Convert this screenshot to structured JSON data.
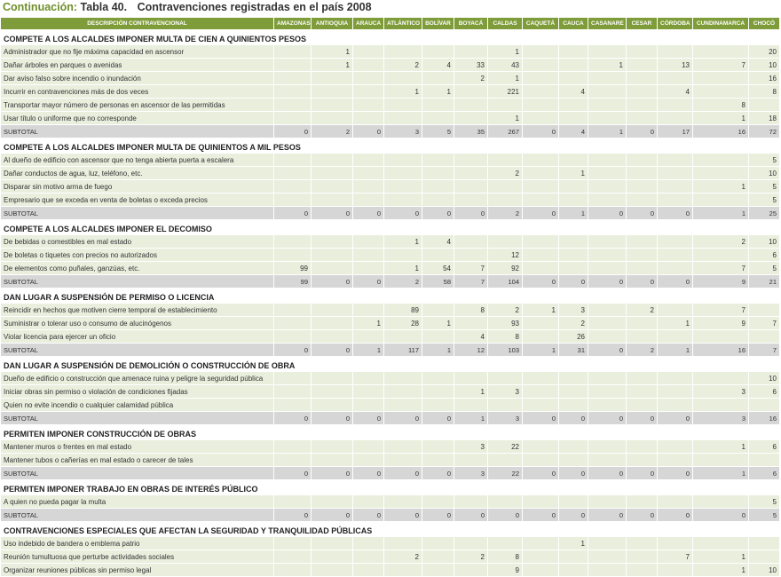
{
  "header": {
    "prefix": "Continuación:",
    "number": "Tabla 40.",
    "title": "Contravenciones registradas en el país 2008"
  },
  "table": {
    "columns": [
      "DESCRIPCIÓN CONTRAVENCIONAL",
      "AMAZONAS",
      "ANTIOQUIA",
      "ARAUCA",
      "ATLÁNTICO",
      "BOLÍVAR",
      "BOYACÁ",
      "CALDAS",
      "CAQUETÁ",
      "CAUCA",
      "CASANARE",
      "CESAR",
      "CÓRDOBA",
      "CUNDINAMARCA",
      "CHOCÓ"
    ],
    "sections": [
      {
        "title": "COMPETE A LOS ALCALDES IMPONER MULTA DE CIEN A QUINIENTOS PESOS",
        "rows": [
          {
            "label": "Administrador que no fije máxima capacidad en ascensor",
            "values": [
              null,
              1,
              null,
              null,
              null,
              null,
              1,
              null,
              null,
              null,
              null,
              null,
              null,
              20
            ]
          },
          {
            "label": "Dañar árboles en parques o avenidas",
            "values": [
              null,
              1,
              null,
              2,
              4,
              33,
              43,
              null,
              null,
              1,
              null,
              13,
              7,
              10
            ]
          },
          {
            "label": "Dar aviso falso sobre incendio o inundación",
            "values": [
              null,
              null,
              null,
              null,
              null,
              2,
              1,
              null,
              null,
              null,
              null,
              null,
              null,
              16
            ]
          },
          {
            "label": "Incurrir en contravenciones más de dos veces",
            "values": [
              null,
              null,
              null,
              1,
              1,
              null,
              221,
              null,
              4,
              null,
              null,
              4,
              null,
              8
            ]
          },
          {
            "label": "Transportar mayor número de personas en ascensor de las permitidas",
            "values": [
              null,
              null,
              null,
              null,
              null,
              null,
              null,
              null,
              null,
              null,
              null,
              null,
              8,
              null
            ]
          },
          {
            "label": "Usar título o uniforme que no corresponde",
            "values": [
              null,
              null,
              null,
              null,
              null,
              null,
              1,
              null,
              null,
              null,
              null,
              null,
              1,
              18
            ]
          }
        ],
        "subtotal": {
          "label": "SUBTOTAL",
          "values": [
            0,
            2,
            0,
            3,
            5,
            35,
            267,
            0,
            4,
            1,
            0,
            17,
            16,
            72
          ]
        }
      },
      {
        "title": "COMPETE A LOS ALCALDES IMPONER MULTA DE QUINIENTOS A MIL PESOS",
        "rows": [
          {
            "label": "Al dueño de edificio con ascensor que no tenga abierta puerta a escalera",
            "values": [
              null,
              null,
              null,
              null,
              null,
              null,
              null,
              null,
              null,
              null,
              null,
              null,
              null,
              5
            ]
          },
          {
            "label": "Dañar conductos de agua, luz, teléfono, etc.",
            "values": [
              null,
              null,
              null,
              null,
              null,
              null,
              2,
              null,
              1,
              null,
              null,
              null,
              null,
              10
            ]
          },
          {
            "label": "Disparar sin motivo arma de fuego",
            "values": [
              null,
              null,
              null,
              null,
              null,
              null,
              null,
              null,
              null,
              null,
              null,
              null,
              1,
              5
            ]
          },
          {
            "label": "Empresario que se exceda en venta de boletas o exceda precios",
            "values": [
              null,
              null,
              null,
              null,
              null,
              null,
              null,
              null,
              null,
              null,
              null,
              null,
              null,
              5
            ]
          }
        ],
        "subtotal": {
          "label": "SUBTOTAL",
          "values": [
            0,
            0,
            0,
            0,
            0,
            0,
            2,
            0,
            1,
            0,
            0,
            0,
            1,
            25
          ]
        }
      },
      {
        "title": "COMPETE A LOS ALCALDES IMPONER EL DECOMISO",
        "rows": [
          {
            "label": "De bebidas o comestibles en mal estado",
            "values": [
              null,
              null,
              null,
              1,
              4,
              null,
              null,
              null,
              null,
              null,
              null,
              null,
              2,
              10
            ]
          },
          {
            "label": "De boletas o tiquetes con precios no autorizados",
            "values": [
              null,
              null,
              null,
              null,
              null,
              null,
              12,
              null,
              null,
              null,
              null,
              null,
              null,
              6
            ]
          },
          {
            "label": "De elementos como puñales, ganzúas, etc.",
            "values": [
              99,
              null,
              null,
              1,
              54,
              7,
              92,
              null,
              null,
              null,
              null,
              null,
              7,
              5
            ]
          }
        ],
        "subtotal": {
          "label": "SUBTOTAL",
          "values": [
            99,
            0,
            0,
            2,
            58,
            7,
            104,
            0,
            0,
            0,
            0,
            0,
            9,
            21
          ]
        }
      },
      {
        "title": "DAN LUGAR A SUSPENSIÓN DE PERMISO O LICENCIA",
        "rows": [
          {
            "label": "Reincidir en hechos que motiven cierre temporal de establecimiento",
            "values": [
              null,
              null,
              null,
              89,
              null,
              8,
              2,
              1,
              3,
              null,
              2,
              null,
              7,
              null
            ]
          },
          {
            "label": "Suministrar o tolerar uso o consumo de alucinógenos",
            "values": [
              null,
              null,
              1,
              28,
              1,
              null,
              93,
              null,
              2,
              null,
              null,
              1,
              9,
              7
            ]
          },
          {
            "label": "Violar licencia para ejercer un oficio",
            "values": [
              null,
              null,
              null,
              null,
              null,
              4,
              8,
              null,
              26,
              null,
              null,
              null,
              null,
              null
            ]
          }
        ],
        "subtotal": {
          "label": "SUBTOTAL",
          "values": [
            0,
            0,
            1,
            117,
            1,
            12,
            103,
            1,
            31,
            0,
            2,
            1,
            16,
            7
          ]
        }
      },
      {
        "title": "DAN LUGAR A SUSPENSIÓN DE DEMOLICIÓN O CONSTRUCCIÓN DE OBRA",
        "rows": [
          {
            "label": "Dueño de edificio o construcción que amenace ruina y peligre la seguridad pública",
            "values": [
              null,
              null,
              null,
              null,
              null,
              null,
              null,
              null,
              null,
              null,
              null,
              null,
              null,
              10
            ]
          },
          {
            "label": "Iniciar obras sin permiso o violación de condiciones fijadas",
            "values": [
              null,
              null,
              null,
              null,
              null,
              1,
              3,
              null,
              null,
              null,
              null,
              null,
              3,
              6
            ]
          },
          {
            "label": "Quien no evite incendio o cualquier calamidad pública",
            "values": [
              null,
              null,
              null,
              null,
              null,
              null,
              null,
              null,
              null,
              null,
              null,
              null,
              null,
              null
            ]
          }
        ],
        "subtotal": {
          "label": "SUBTOTAL",
          "values": [
            0,
            0,
            0,
            0,
            0,
            1,
            3,
            0,
            0,
            0,
            0,
            0,
            3,
            16
          ]
        }
      },
      {
        "title": "PERMITEN IMPONER CONSTRUCCIÓN DE OBRAS",
        "rows": [
          {
            "label": "Mantener muros o frentes en mal estado",
            "values": [
              null,
              null,
              null,
              null,
              null,
              3,
              22,
              null,
              null,
              null,
              null,
              null,
              1,
              6
            ]
          },
          {
            "label": "Mantener tubos o cañerías en mal estado o carecer de tales",
            "values": [
              null,
              null,
              null,
              null,
              null,
              null,
              null,
              null,
              null,
              null,
              null,
              null,
              null,
              null
            ]
          }
        ],
        "subtotal": {
          "label": "SUBTOTAL",
          "values": [
            0,
            0,
            0,
            0,
            0,
            3,
            22,
            0,
            0,
            0,
            0,
            0,
            1,
            6
          ]
        }
      },
      {
        "title": "PERMITEN IMPONER TRABAJO EN OBRAS DE INTERÉS PÚBLICO",
        "rows": [
          {
            "label": "A quien no pueda pagar la multa",
            "values": [
              null,
              null,
              null,
              null,
              null,
              null,
              null,
              null,
              null,
              null,
              null,
              null,
              null,
              5
            ]
          }
        ],
        "subtotal": {
          "label": "SUBTOTAL",
          "values": [
            0,
            0,
            0,
            0,
            0,
            0,
            0,
            0,
            0,
            0,
            0,
            0,
            0,
            5
          ]
        }
      },
      {
        "title": "CONTRAVENCIONES ESPECIALES QUE AFECTAN LA SEGURIDAD Y TRANQUILIDAD PÚBLICAS",
        "rows": [
          {
            "label": "Uso indebido de bandera o emblema patrio",
            "values": [
              null,
              null,
              null,
              null,
              null,
              null,
              null,
              null,
              1,
              null,
              null,
              null,
              null,
              null
            ]
          },
          {
            "label": "Reunión tumultuosa que perturbe actividades sociales",
            "values": [
              null,
              null,
              null,
              2,
              null,
              2,
              8,
              null,
              null,
              null,
              null,
              7,
              1,
              null
            ]
          },
          {
            "label": "Organizar reuniones públicas sin permiso legal",
            "values": [
              null,
              null,
              null,
              null,
              null,
              null,
              9,
              null,
              null,
              null,
              null,
              null,
              1,
              10
            ]
          }
        ]
      }
    ]
  }
}
